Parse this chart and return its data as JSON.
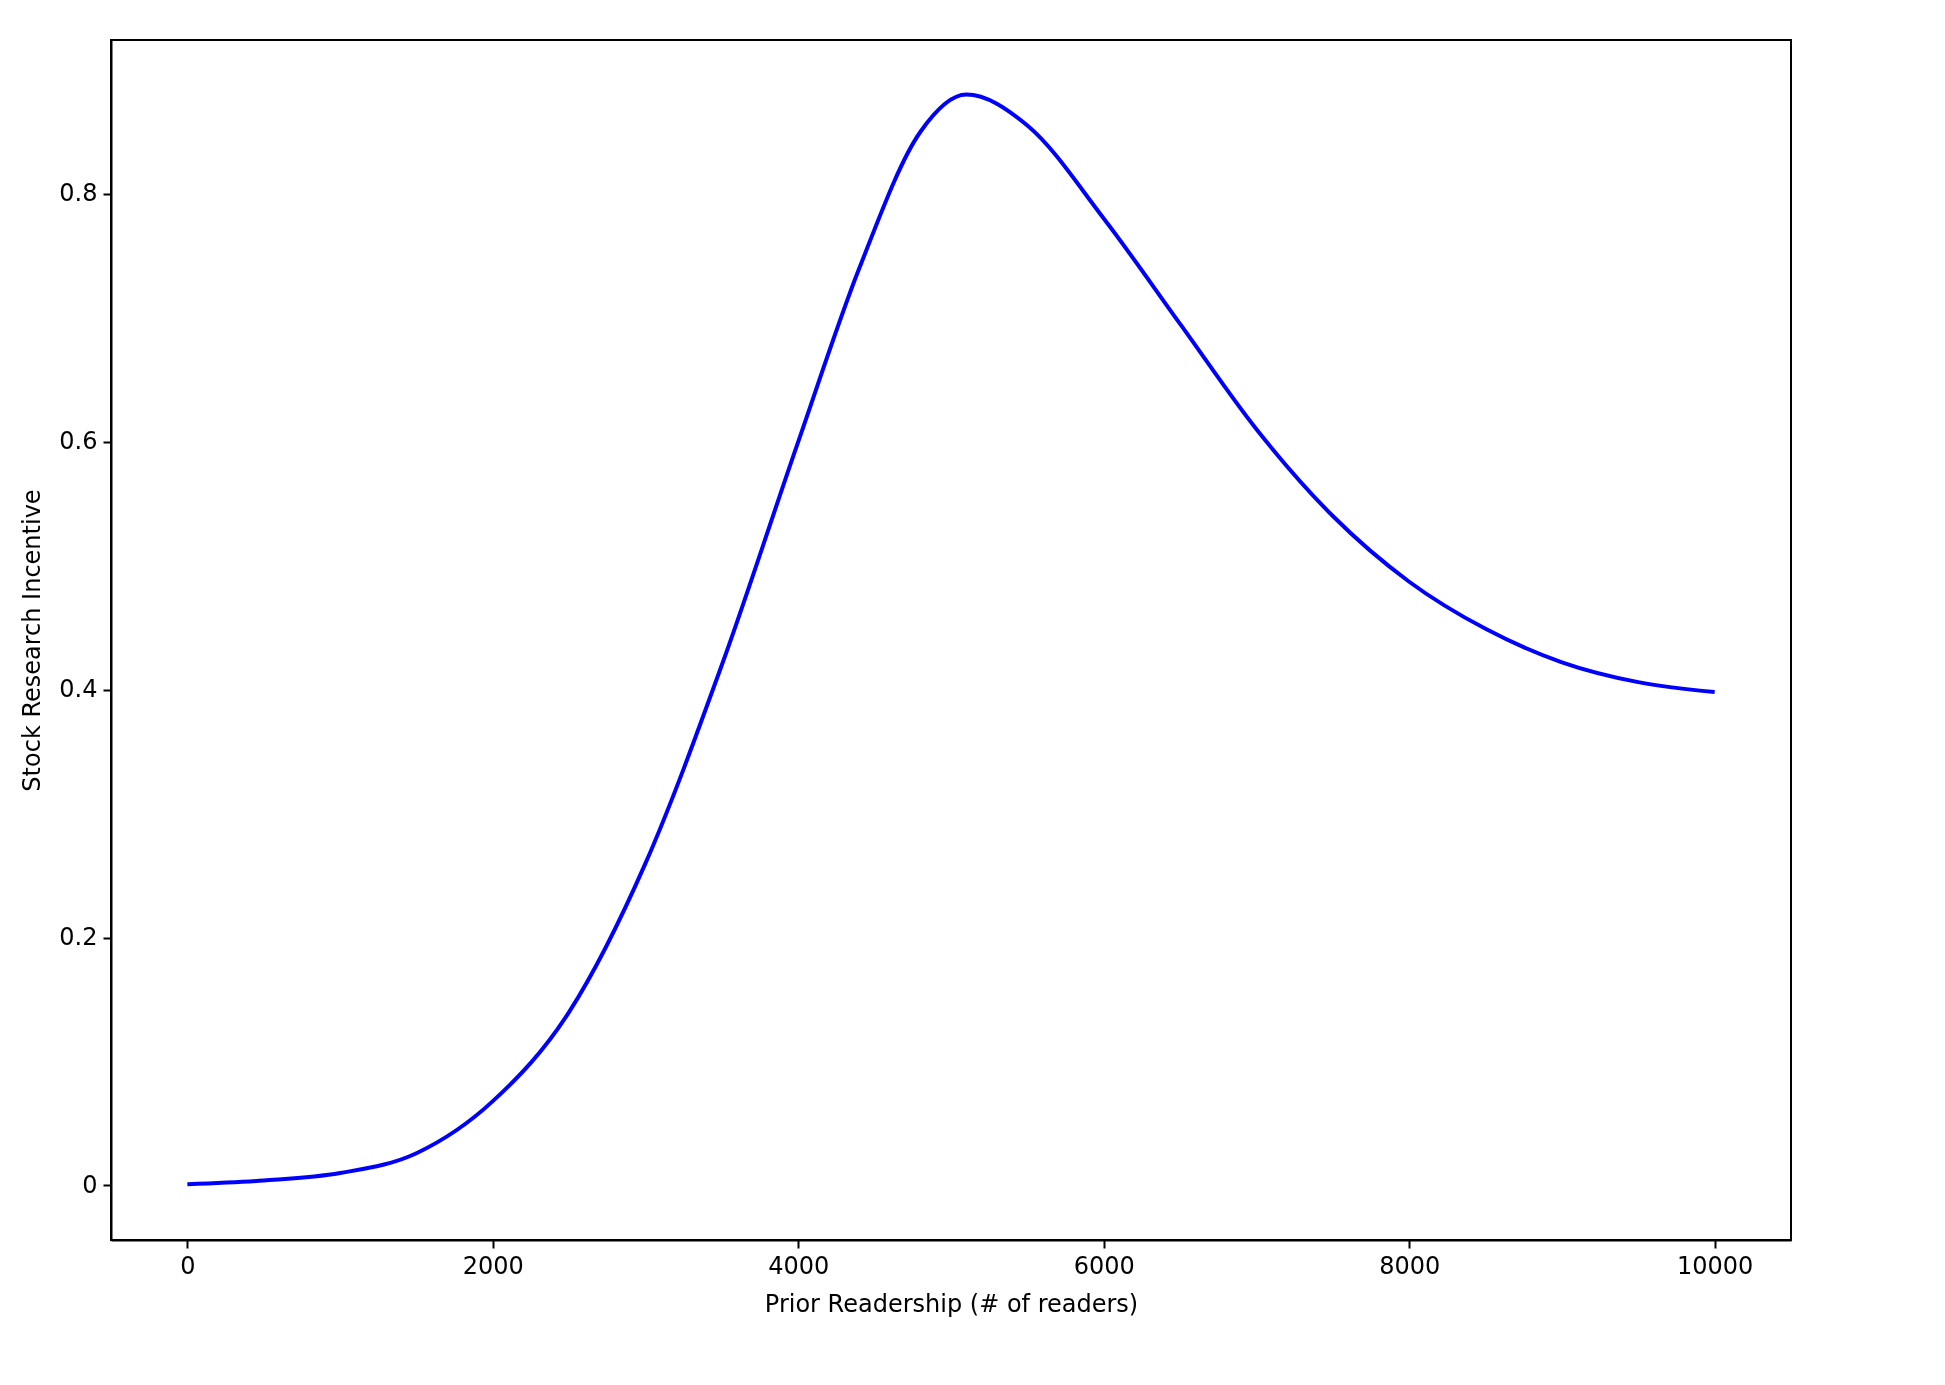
{
  "chart_data": {
    "type": "line",
    "xlabel": "Prior Readership (# of readers)",
    "ylabel": "Stock Research Incentive",
    "x": [
      0,
      500,
      1000,
      1500,
      2000,
      2500,
      3000,
      3500,
      4000,
      4400,
      4800,
      5100,
      5500,
      6000,
      6500,
      7000,
      7500,
      8000,
      8500,
      9000,
      9500,
      10000
    ],
    "series": [
      {
        "color": "#0000ff",
        "values": [
          0.001,
          0.004,
          0.01,
          0.026,
          0.068,
          0.14,
          0.26,
          0.42,
          0.6,
          0.74,
          0.85,
          0.88,
          0.855,
          0.78,
          0.695,
          0.61,
          0.54,
          0.487,
          0.449,
          0.422,
          0.406,
          0.398
        ]
      }
    ],
    "xlim": [
      -500,
      10500
    ],
    "ylim": [
      -0.044,
      0.924
    ],
    "xticks": [
      0,
      2000,
      4000,
      6000,
      8000,
      10000
    ],
    "yticks": [
      0,
      {
        "value": 0.2,
        "label": "0.2"
      },
      {
        "value": 0.4,
        "label": "0.4"
      },
      {
        "value": 0.6,
        "label": "0.6"
      },
      {
        "value": 0.8,
        "label": "0.8"
      }
    ],
    "grid": false,
    "line_style": "solid",
    "marker": "none"
  }
}
